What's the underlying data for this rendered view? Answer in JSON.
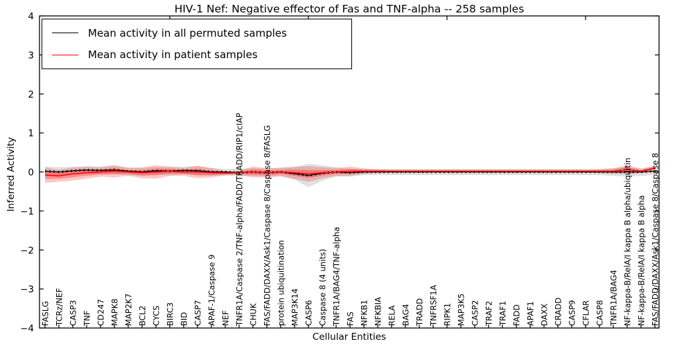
{
  "title": "HIV-1 Nef: Negative effector of Fas and TNF-alpha -- 258 samples",
  "legend": {
    "items": [
      {
        "label": "Mean activity in all permuted samples",
        "color": "#000000"
      },
      {
        "label": "Mean activity in patient samples",
        "color": "#ff0000"
      }
    ]
  },
  "chart_data": {
    "type": "line",
    "title": "HIV-1 Nef: Negative effector of Fas and TNF-alpha -- 258 samples",
    "xlabel": "Cellular Entities",
    "ylabel": "Inferred Activity",
    "ylim": [
      -4,
      4
    ],
    "yticks": [
      {
        "value": 4,
        "label": "4"
      },
      {
        "value": 3,
        "label": "3"
      },
      {
        "value": 2,
        "label": "2"
      },
      {
        "value": 1,
        "label": "1"
      },
      {
        "value": 0,
        "label": "0"
      },
      {
        "value": -1,
        "label": "−1"
      },
      {
        "value": -2,
        "label": "−2"
      },
      {
        "value": -3,
        "label": "−3"
      },
      {
        "value": -4,
        "label": "−4"
      }
    ],
    "grid": false,
    "legend_position": "upper left",
    "categories": [
      "FASLG",
      "TCRz/NEF",
      "CASP3",
      "TNF",
      "CD247",
      "MAPK8",
      "MAP2K7",
      "BCL2",
      "CYCS",
      "BIRC3",
      "BID",
      "CASP7",
      "APAF-1/Caspase 9",
      "NEF",
      "TNFR1A/Caspase 2/TNF-alpha/FADD/TRADD/RIP1/cIAP",
      "CHUK",
      "FAS/FADD/DAXX/Ask1/Caspase 8/Caspase 8/FASLG",
      "protein ubiquitination",
      "MAP3K14",
      "CASP6",
      "Caspase 8 (4 units)",
      "TNFR1A/BAG4/TNF-alpha",
      "FAS",
      "NFKB1",
      "NFKBIA",
      "RELA",
      "BAG4",
      "TRADD",
      "TNFRSF1A",
      "RIPK1",
      "MAP3K5",
      "CASP2",
      "TRAF2",
      "TRAF1",
      "FADD",
      "APAF1",
      "DAXX",
      "CRADD",
      "CASP9",
      "CFLAR",
      "CASP8",
      "TNFR1A/BAG4",
      "NF-kappa-B/RelA/I kappa B alpha/ubiquitin",
      "NF-kappa-B/RelA/I kappa B alpha",
      "FAS/FADD/DAXX/Ask1/Caspase 8/Caspase 8"
    ],
    "series": [
      {
        "name": "Mean activity in all permuted samples",
        "color": "#000000",
        "band_color": "#bbbbbb",
        "values": [
          0.02,
          0.0,
          0.03,
          0.05,
          0.04,
          0.05,
          0.02,
          0.0,
          0.03,
          0.02,
          0.04,
          0.03,
          0.0,
          0.0,
          -0.02,
          0.0,
          -0.02,
          0.0,
          -0.04,
          -0.09,
          -0.03,
          0.0,
          -0.02,
          0.0,
          0.0,
          0.0,
          0.0,
          0.0,
          0.0,
          0.0,
          0.0,
          0.0,
          0.0,
          0.0,
          0.0,
          0.0,
          0.0,
          0.0,
          0.0,
          0.0,
          0.0,
          0.0,
          0.0,
          0.0,
          0.02
        ],
        "band_halfwidth": [
          0.12,
          0.12,
          0.1,
          0.1,
          0.1,
          0.1,
          0.1,
          0.1,
          0.1,
          0.1,
          0.1,
          0.12,
          0.1,
          0.08,
          0.1,
          0.1,
          0.1,
          0.12,
          0.16,
          0.3,
          0.2,
          0.12,
          0.1,
          0.08,
          0.08,
          0.08,
          0.08,
          0.08,
          0.08,
          0.08,
          0.08,
          0.08,
          0.08,
          0.08,
          0.08,
          0.08,
          0.08,
          0.08,
          0.08,
          0.08,
          0.08,
          0.1,
          0.12,
          0.1,
          0.1
        ]
      },
      {
        "name": "Mean activity in patient samples",
        "color": "#ff0000",
        "band_color": "#ff0000",
        "values": [
          -0.08,
          -0.1,
          -0.05,
          -0.02,
          0.0,
          0.02,
          0.0,
          -0.02,
          0.0,
          0.02,
          0.0,
          0.0,
          -0.02,
          -0.03,
          -0.02,
          0.0,
          -0.02,
          0.0,
          -0.02,
          -0.05,
          -0.02,
          0.0,
          0.02,
          0.02,
          0.02,
          0.02,
          0.02,
          0.02,
          0.02,
          0.02,
          0.02,
          0.02,
          0.02,
          0.02,
          0.02,
          0.02,
          0.02,
          0.02,
          0.02,
          0.02,
          0.02,
          0.02,
          0.06,
          0.02,
          0.1
        ],
        "band_halfwidth": [
          0.2,
          0.15,
          0.17,
          0.15,
          0.12,
          0.16,
          0.1,
          0.14,
          0.17,
          0.12,
          0.1,
          0.16,
          0.12,
          0.06,
          0.05,
          0.14,
          0.12,
          0.1,
          0.16,
          0.2,
          0.14,
          0.1,
          0.12,
          0.07,
          0.05,
          0.04,
          0.04,
          0.04,
          0.04,
          0.04,
          0.04,
          0.04,
          0.04,
          0.04,
          0.04,
          0.04,
          0.04,
          0.04,
          0.04,
          0.04,
          0.05,
          0.07,
          0.12,
          0.05,
          0.08
        ]
      }
    ]
  }
}
